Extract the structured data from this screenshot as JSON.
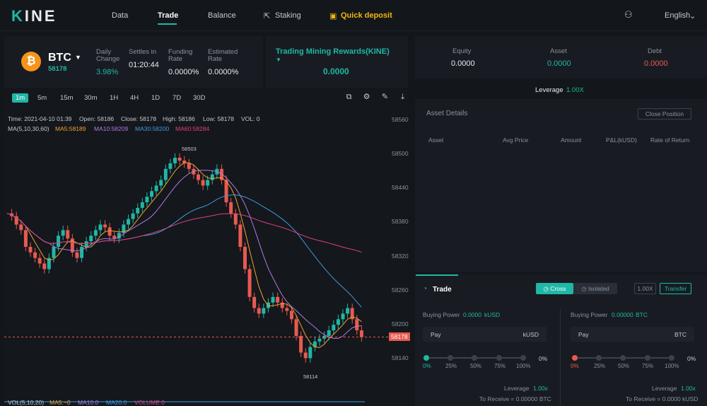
{
  "nav": {
    "logo": "KINE",
    "items": [
      "Data",
      "Trade",
      "Balance",
      "Staking"
    ],
    "quick_deposit": "Quick deposit",
    "language": "English"
  },
  "ticker": {
    "symbol": "BTC",
    "price": "58178",
    "daily_change_label": "Daily Change",
    "daily_change": "3.98%",
    "settles_label": "Settles in",
    "settles": "01:20:44",
    "funding_label": "Funding Rate",
    "funding": "0.0000%",
    "est_label": "Estimated Rate",
    "est": "0.0000%",
    "rewards_label": "Trading Mining Rewards(KINE)",
    "rewards": "0.0000"
  },
  "timeframes": [
    "1m",
    "5m",
    "15m",
    "30m",
    "1H",
    "4H",
    "1D",
    "7D",
    "30D"
  ],
  "chart_info": {
    "time": "Time: 2021-04-10 01:39",
    "open": "Open: 58186",
    "close": "Close: 58178",
    "high": "High: 58186",
    "low": "Low: 58178",
    "vol": "VOL: 0",
    "ma_label": "MA(5,10,30,60)",
    "ma5": "MA5:58189",
    "ma10": "MA10:58209",
    "ma30": "MA30:58200",
    "ma60": "MA60:58284",
    "high_mark": "58503",
    "low_mark": "58114",
    "current_price": "58178",
    "vol_label": "VOL(5,10,20)",
    "vma5": "MA5:~0",
    "vma10": "MA10:0",
    "vma20": "MA20:0",
    "volume": "VOLUME:0"
  },
  "chart_data": {
    "type": "candlestick",
    "y_ticks": [
      "58560",
      "58500",
      "58440",
      "58380",
      "58320",
      "58260",
      "58200",
      "58140"
    ],
    "ylim": [
      58110,
      58575
    ],
    "closes": [
      58400,
      58395,
      58380,
      58370,
      58340,
      58330,
      58320,
      58310,
      58300,
      58320,
      58340,
      58360,
      58370,
      58355,
      58330,
      58320,
      58340,
      58350,
      58360,
      58370,
      58380,
      58375,
      58360,
      58355,
      58365,
      58380,
      58390,
      58400,
      58410,
      58420,
      58430,
      58440,
      58450,
      58460,
      58480,
      58490,
      58500,
      58495,
      58490,
      58480,
      58470,
      58460,
      58450,
      58460,
      58470,
      58480,
      58460,
      58420,
      58400,
      58380,
      58340,
      58300,
      58250,
      58230,
      58220,
      58230,
      58240,
      58250,
      58240,
      58230,
      58225,
      58210,
      58180,
      58150,
      58140,
      58160,
      58170,
      58175,
      58180,
      58190,
      58200,
      58210,
      58220,
      58230,
      58210,
      58190,
      58178
    ]
  },
  "account": {
    "equity_label": "Equity",
    "equity": "0.0000",
    "asset_label": "Asset",
    "asset": "0.0000",
    "debt_label": "Debt",
    "debt": "0.0000",
    "leverage_label": "Leverage",
    "leverage": "1.00X",
    "details_title": "Asset Details",
    "close_position": "Close Position",
    "columns": [
      "Asset",
      "Avg Price",
      "Amount",
      "P&L(kUSD)",
      "Rate of Return"
    ]
  },
  "trade": {
    "title": "Trade",
    "cross": "Cross",
    "isolated": "Isolated",
    "lev_btn": "1.00X",
    "transfer": "Transfer",
    "left": {
      "bp_label": "Buying Power",
      "bp": "0.0000",
      "bp_unit": "kUSD",
      "pay": "Pay",
      "unit": "kUSD",
      "pct": "0%",
      "lev_label": "Leverage",
      "lev": "1.00x",
      "receive": "To Receive = 0.00000 BTC"
    },
    "right": {
      "bp_label": "Buying Power",
      "bp": "0.00000",
      "bp_unit": "BTC",
      "pay": "Pay",
      "unit": "BTC",
      "pct": "0%",
      "lev_label": "Leverage",
      "lev": "1.00x",
      "receive": "To Receive = 0.0000 kUSD"
    },
    "steps": [
      "0%",
      "25%",
      "50%",
      "75%",
      "100%"
    ]
  },
  "colors": {
    "teal": "#1fb7a6",
    "red": "#e85a50",
    "gold": "#f0b90b"
  }
}
